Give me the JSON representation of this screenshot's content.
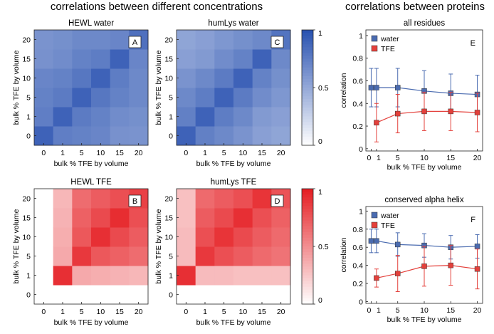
{
  "headings": {
    "left": "correlations between different concentrations",
    "right": "correlations between proteins"
  },
  "colors": {
    "blue": "#2851b0",
    "red": "#e51d22",
    "water": "#4a6bb0",
    "tfe": "#e4403b"
  },
  "colorbars": [
    {
      "ticks": [
        {
          "value": 1,
          "label": "1"
        },
        {
          "value": 0.5,
          "label": "0.5"
        },
        {
          "value": 0,
          "label": "0"
        }
      ]
    },
    {
      "ticks": [
        {
          "value": 1,
          "label": "1"
        },
        {
          "value": 0.5,
          "label": "0.5"
        },
        {
          "value": 0,
          "label": "0"
        }
      ]
    }
  ],
  "chart_data": [
    {
      "id": "A",
      "type": "heatmap",
      "title": "HEWL water",
      "xlabel": "bulk % TFE by volume",
      "ylabel": "bulk % TFE by volume",
      "x": [
        "0",
        "1",
        "5",
        "10",
        "15",
        "20"
      ],
      "y": [
        "0",
        "1",
        "5",
        "10",
        "15",
        "20"
      ],
      "colormap": "blue",
      "clim": [
        0,
        1
      ],
      "z": [
        [
          0.9,
          0.74,
          0.72,
          0.7,
          0.63,
          0.62
        ],
        [
          0.74,
          0.9,
          0.76,
          0.72,
          0.66,
          0.64
        ],
        [
          0.72,
          0.76,
          0.9,
          0.78,
          0.72,
          0.68
        ],
        [
          0.7,
          0.72,
          0.78,
          0.9,
          0.75,
          0.68
        ],
        [
          0.63,
          0.66,
          0.72,
          0.75,
          0.9,
          0.7
        ],
        [
          0.62,
          0.64,
          0.68,
          0.68,
          0.7,
          0.82
        ]
      ]
    },
    {
      "id": "C",
      "type": "heatmap",
      "title": "humLys water",
      "xlabel": "bulk % TFE by volume",
      "ylabel": "bulk % TFE by volume",
      "x": [
        "0",
        "1",
        "5",
        "10",
        "15",
        "20"
      ],
      "y": [
        "0",
        "1",
        "5",
        "10",
        "15",
        "20"
      ],
      "colormap": "blue",
      "clim": [
        0,
        1
      ],
      "z": [
        [
          0.9,
          0.73,
          0.68,
          0.62,
          0.55,
          0.52
        ],
        [
          0.73,
          0.9,
          0.75,
          0.68,
          0.58,
          0.55
        ],
        [
          0.68,
          0.75,
          0.9,
          0.76,
          0.66,
          0.6
        ],
        [
          0.62,
          0.68,
          0.76,
          0.9,
          0.72,
          0.64
        ],
        [
          0.55,
          0.58,
          0.66,
          0.72,
          0.9,
          0.68
        ],
        [
          0.52,
          0.55,
          0.6,
          0.64,
          0.68,
          0.8
        ]
      ]
    },
    {
      "id": "B",
      "type": "heatmap",
      "title": "HEWL TFE",
      "xlabel": "bulk % TFE by volume",
      "ylabel": "bulk % TFE by volume",
      "x": [
        "0",
        "1",
        "5",
        "10",
        "15",
        "20"
      ],
      "y": [
        "0",
        "1",
        "5",
        "10",
        "15",
        "20"
      ],
      "colormap": "red",
      "clim": [
        0,
        1
      ],
      "z": [
        [
          null,
          null,
          null,
          null,
          null,
          null
        ],
        [
          null,
          0.92,
          0.38,
          0.36,
          0.34,
          0.32
        ],
        [
          null,
          0.38,
          0.88,
          0.74,
          0.7,
          0.65
        ],
        [
          null,
          0.36,
          0.74,
          0.92,
          0.8,
          0.72
        ],
        [
          null,
          0.34,
          0.7,
          0.8,
          0.93,
          0.78
        ],
        [
          null,
          0.32,
          0.65,
          0.72,
          0.78,
          0.84
        ]
      ]
    },
    {
      "id": "D",
      "type": "heatmap",
      "title": "humLys TFE",
      "xlabel": "bulk % TFE by volume",
      "ylabel": "bulk % TFE by volume",
      "x": [
        "0",
        "1",
        "5",
        "10",
        "15",
        "20"
      ],
      "y": [
        "0",
        "1",
        "5",
        "10",
        "15",
        "20"
      ],
      "colormap": "red",
      "clim": [
        0,
        1
      ],
      "z": [
        [
          null,
          null,
          null,
          null,
          null,
          null
        ],
        [
          0.92,
          0.3,
          0.3,
          0.28,
          0.28,
          0.28
        ],
        [
          0.3,
          0.88,
          0.78,
          0.72,
          0.66,
          0.62
        ],
        [
          0.3,
          0.78,
          0.9,
          0.8,
          0.72,
          0.66
        ],
        [
          0.28,
          0.72,
          0.8,
          0.92,
          0.78,
          0.7
        ],
        [
          0.28,
          0.66,
          0.72,
          0.78,
          0.9,
          0.76
        ]
      ]
    },
    {
      "id": "E",
      "type": "line",
      "title": "all residues",
      "xlabel": "bulk % TFE by volume",
      "ylabel": "correlation",
      "xlim": [
        -1,
        21
      ],
      "ylim": [
        -0.02,
        1.05
      ],
      "xticks": [
        "0",
        "1",
        "5",
        "10",
        "15",
        "20"
      ],
      "yticks": [
        "0",
        "0.2",
        "0.4",
        "0.6",
        "0.8",
        "1"
      ],
      "legend": "top-left",
      "series": [
        {
          "name": "water",
          "x": [
            0,
            1,
            5,
            10,
            15,
            20
          ],
          "y": [
            0.54,
            0.54,
            0.54,
            0.51,
            0.49,
            0.48
          ],
          "err": [
            0.17,
            0.17,
            0.17,
            0.18,
            0.17,
            0.17
          ]
        },
        {
          "name": "TFE",
          "x": [
            1,
            5,
            10,
            15,
            20
          ],
          "y": [
            0.23,
            0.31,
            0.33,
            0.33,
            0.32
          ],
          "err": [
            0.17,
            0.17,
            0.17,
            0.17,
            0.17
          ]
        }
      ]
    },
    {
      "id": "F",
      "type": "line",
      "title": "conserved alpha helix",
      "xlabel": "bulk % TFE by volume",
      "ylabel": "correlation",
      "xlim": [
        -1,
        21
      ],
      "ylim": [
        -0.02,
        1.05
      ],
      "xticks": [
        "0",
        "1",
        "5",
        "10",
        "15",
        "20"
      ],
      "yticks": [
        "0",
        "0.2",
        "0.4",
        "0.6",
        "0.8",
        "1"
      ],
      "legend": "top-left",
      "series": [
        {
          "name": "water",
          "x": [
            0,
            1,
            5,
            10,
            15,
            20
          ],
          "y": [
            0.67,
            0.67,
            0.63,
            0.62,
            0.6,
            0.61
          ],
          "err": [
            0.13,
            0.13,
            0.13,
            0.13,
            0.13,
            0.13
          ]
        },
        {
          "name": "TFE",
          "x": [
            1,
            5,
            10,
            15,
            20
          ],
          "y": [
            0.26,
            0.31,
            0.39,
            0.4,
            0.36
          ],
          "err": [
            0.1,
            0.2,
            0.22,
            0.22,
            0.22
          ]
        }
      ]
    }
  ]
}
